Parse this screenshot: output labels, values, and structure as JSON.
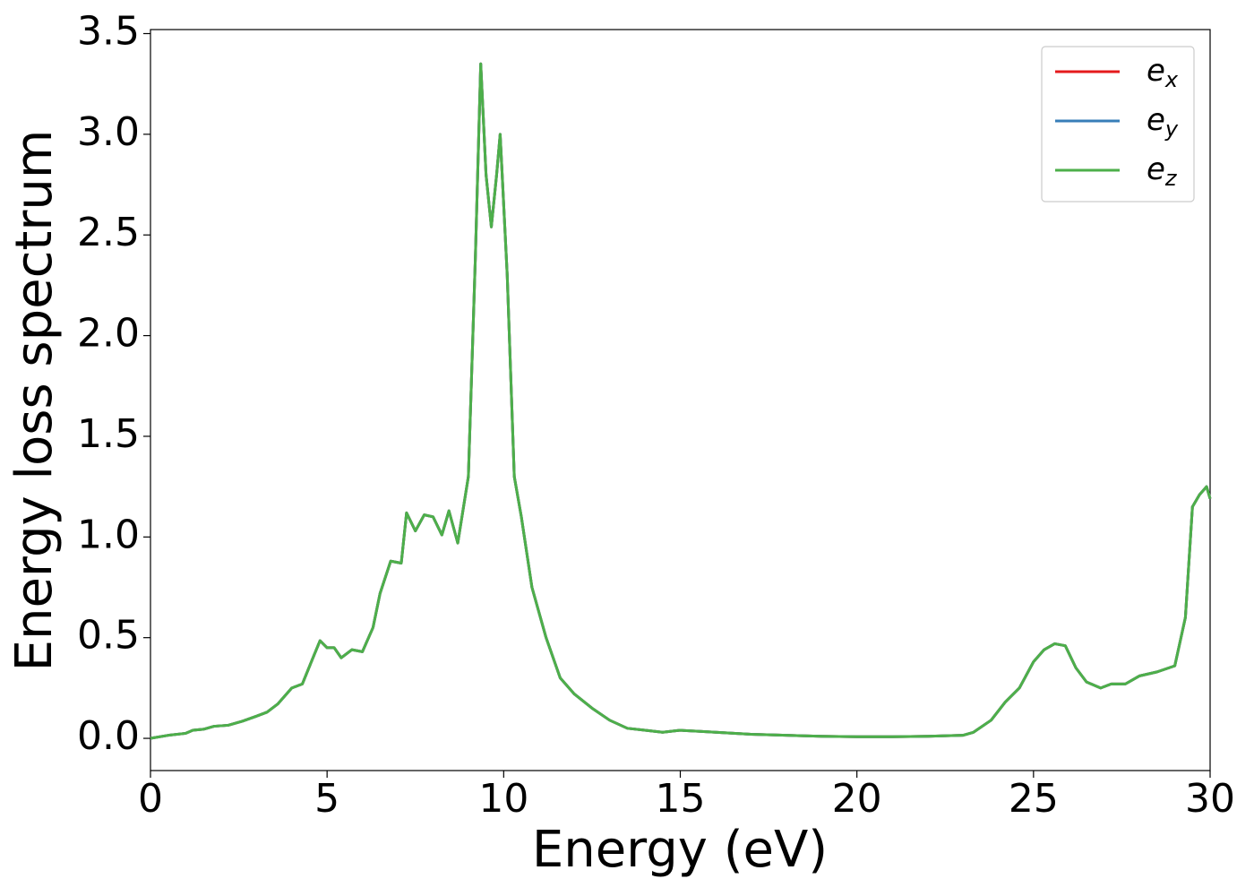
{
  "chart_data": {
    "type": "line",
    "xlabel": "Energy (eV)",
    "ylabel": "Energy loss spectrum",
    "x": [
      0,
      0.5,
      1.0,
      1.2,
      1.5,
      1.8,
      2.2,
      2.6,
      3.0,
      3.3,
      3.6,
      4.0,
      4.3,
      4.6,
      4.8,
      5.0,
      5.2,
      5.4,
      5.7,
      6.0,
      6.3,
      6.5,
      6.8,
      7.1,
      7.25,
      7.5,
      7.75,
      8.0,
      8.25,
      8.45,
      8.7,
      9.0,
      9.2,
      9.35,
      9.5,
      9.65,
      9.8,
      9.9,
      10.1,
      10.3,
      10.5,
      10.8,
      11.2,
      11.6,
      12.0,
      12.5,
      13.0,
      13.5,
      14.0,
      14.5,
      15.0,
      15.5,
      16,
      17,
      18,
      19,
      20,
      21,
      22,
      23,
      23.3,
      23.8,
      24.2,
      24.6,
      25.0,
      25.3,
      25.6,
      25.9,
      26.2,
      26.5,
      26.9,
      27.2,
      27.6,
      28.0,
      28.5,
      29.0,
      29.3,
      29.5,
      29.7,
      29.9,
      30
    ],
    "series": [
      {
        "name": "ex",
        "color": "#e41a1c",
        "values": [
          0.0,
          0.015,
          0.025,
          0.04,
          0.045,
          0.06,
          0.065,
          0.085,
          0.11,
          0.13,
          0.17,
          0.25,
          0.27,
          0.4,
          0.485,
          0.45,
          0.45,
          0.4,
          0.44,
          0.43,
          0.55,
          0.72,
          0.88,
          0.87,
          1.12,
          1.03,
          1.11,
          1.1,
          1.01,
          1.13,
          0.97,
          1.3,
          2.4,
          3.35,
          2.8,
          2.54,
          2.8,
          3.0,
          2.3,
          1.3,
          1.1,
          0.75,
          0.5,
          0.3,
          0.22,
          0.15,
          0.09,
          0.05,
          0.04,
          0.03,
          0.04,
          0.035,
          0.03,
          0.02,
          0.015,
          0.01,
          0.008,
          0.008,
          0.01,
          0.015,
          0.03,
          0.09,
          0.18,
          0.25,
          0.38,
          0.44,
          0.47,
          0.46,
          0.35,
          0.28,
          0.25,
          0.27,
          0.27,
          0.31,
          0.33,
          0.36,
          0.6,
          1.15,
          1.21,
          1.25,
          1.19
        ]
      },
      {
        "name": "ey",
        "color": "#377eb8",
        "values": [
          0.0,
          0.015,
          0.025,
          0.04,
          0.045,
          0.06,
          0.065,
          0.085,
          0.11,
          0.13,
          0.17,
          0.25,
          0.27,
          0.4,
          0.485,
          0.45,
          0.45,
          0.4,
          0.44,
          0.43,
          0.55,
          0.72,
          0.88,
          0.87,
          1.12,
          1.03,
          1.11,
          1.1,
          1.01,
          1.13,
          0.97,
          1.3,
          2.4,
          3.35,
          2.8,
          2.54,
          2.8,
          3.0,
          2.3,
          1.3,
          1.1,
          0.75,
          0.5,
          0.3,
          0.22,
          0.15,
          0.09,
          0.05,
          0.04,
          0.03,
          0.04,
          0.035,
          0.03,
          0.02,
          0.015,
          0.01,
          0.008,
          0.008,
          0.01,
          0.015,
          0.03,
          0.09,
          0.18,
          0.25,
          0.38,
          0.44,
          0.47,
          0.46,
          0.35,
          0.28,
          0.25,
          0.27,
          0.27,
          0.31,
          0.33,
          0.36,
          0.6,
          1.15,
          1.21,
          1.25,
          1.19
        ]
      },
      {
        "name": "ez",
        "color": "#4daf4a",
        "values": [
          0.0,
          0.015,
          0.025,
          0.04,
          0.045,
          0.06,
          0.065,
          0.085,
          0.11,
          0.13,
          0.17,
          0.25,
          0.27,
          0.4,
          0.485,
          0.45,
          0.45,
          0.4,
          0.44,
          0.43,
          0.55,
          0.72,
          0.88,
          0.87,
          1.12,
          1.03,
          1.11,
          1.1,
          1.01,
          1.13,
          0.97,
          1.3,
          2.4,
          3.35,
          2.8,
          2.54,
          2.8,
          3.0,
          2.3,
          1.3,
          1.1,
          0.75,
          0.5,
          0.3,
          0.22,
          0.15,
          0.09,
          0.05,
          0.04,
          0.03,
          0.04,
          0.035,
          0.03,
          0.02,
          0.015,
          0.01,
          0.008,
          0.008,
          0.01,
          0.015,
          0.03,
          0.09,
          0.18,
          0.25,
          0.38,
          0.44,
          0.47,
          0.46,
          0.35,
          0.28,
          0.25,
          0.27,
          0.27,
          0.31,
          0.33,
          0.36,
          0.6,
          1.15,
          1.21,
          1.25,
          1.19
        ]
      }
    ],
    "xlim": [
      0,
      30
    ],
    "ylim": [
      -0.16,
      3.52
    ],
    "xticks": [
      0,
      5,
      10,
      15,
      20,
      25,
      30
    ],
    "yticks": [
      {
        "value": 0,
        "label": "0.0"
      },
      {
        "value": 0.5,
        "label": "0.5"
      },
      {
        "value": 1,
        "label": "1.0"
      },
      {
        "value": 1.5,
        "label": "1.5"
      },
      {
        "value": 2,
        "label": "2.0"
      },
      {
        "value": 2.5,
        "label": "2.5"
      },
      {
        "value": 3,
        "label": "3.0"
      },
      {
        "value": 3.5,
        "label": "3.5"
      }
    ],
    "legend": "upper right",
    "grid": false
  }
}
